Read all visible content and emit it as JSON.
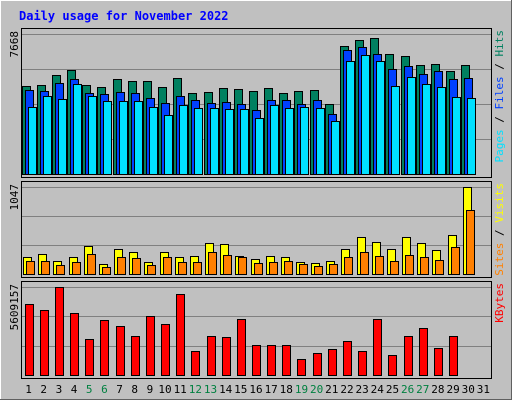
{
  "chart_data": {
    "type": "bar",
    "title": "Daily usage for November 2022",
    "days": [
      1,
      2,
      3,
      4,
      5,
      6,
      7,
      8,
      9,
      10,
      11,
      12,
      13,
      14,
      15,
      16,
      17,
      18,
      19,
      20,
      21,
      22,
      23,
      24,
      25,
      26,
      27,
      28,
      29,
      30,
      31
    ],
    "weekend_days": [
      5,
      6,
      12,
      13,
      19,
      20,
      26,
      27
    ],
    "colors": {
      "hits": "#008060",
      "files": "#0040ff",
      "pages": "#00e0ff",
      "visits": "#ffff00",
      "sites": "#ff8000",
      "kbytes": "#ff0000",
      "weekend_label": "#008040",
      "weekday_label": "#000000",
      "title": "#0000ff"
    },
    "panels": [
      {
        "id": "requests",
        "max_label": "7668",
        "max_value": 7668,
        "axis_legend": [
          {
            "text": "Pages",
            "color": "#00e0ff"
          },
          {
            "text": " / ",
            "color": "#000000"
          },
          {
            "text": "Files",
            "color": "#0040ff"
          },
          {
            "text": " / ",
            "color": "#000000"
          },
          {
            "text": "Hits",
            "color": "#008060"
          }
        ],
        "series": [
          {
            "name": "Hits",
            "color": "#008060",
            "values": [
              4830,
              4860,
              5420,
              5720,
              4900,
              4760,
              5190,
              5100,
              5080,
              4760,
              5240,
              4420,
              4470,
              4700,
              4640,
              4540,
              4690,
              4420,
              4540,
              4590,
              3840,
              7020,
              7350,
              7440,
              6570,
              6450,
              5960,
              6030,
              5650,
              5980,
              0
            ]
          },
          {
            "name": "Files",
            "color": "#0040ff",
            "values": [
              4600,
              4530,
              5010,
              5190,
              4450,
              4360,
              4470,
              4440,
              4140,
              3880,
              4260,
              4070,
              3890,
              3940,
              3850,
              3530,
              4050,
              4030,
              3810,
              4050,
              3270,
              6800,
              6940,
              6570,
              5730,
              5940,
              5480,
              5660,
              5200,
              5270,
              0
            ]
          },
          {
            "name": "Pages",
            "color": "#00e0ff",
            "values": [
              3660,
              4250,
              4110,
              4940,
              4270,
              4000,
              4000,
              4000,
              3650,
              3220,
              3800,
              3640,
              3600,
              3560,
              3570,
              3050,
              3780,
              3610,
              3680,
              3640,
              2880,
              6200,
              6530,
              6170,
              4830,
              5330,
              4920,
              4770,
              4210,
              4190,
              0
            ]
          }
        ]
      },
      {
        "id": "visitors",
        "max_label": "1047",
        "max_value": 1047,
        "axis_legend": [
          {
            "text": "Sites",
            "color": "#ff8000"
          },
          {
            "text": " / ",
            "color": "#000000"
          },
          {
            "text": "Visits",
            "color": "#ffff00"
          }
        ],
        "series": [
          {
            "name": "Visits",
            "color": "#ffff00",
            "values": [
              200,
              240,
              160,
              200,
              340,
              120,
              300,
              260,
              140,
              270,
              200,
              220,
              370,
              360,
              220,
              180,
              220,
              200,
              150,
              130,
              160,
              300,
              450,
              380,
              300,
              440,
              370,
              290,
              470,
              1047,
              0
            ]
          },
          {
            "name": "Sites",
            "color": "#ff8000",
            "values": [
              160,
              160,
              110,
              140,
              240,
              90,
              210,
              190,
              110,
              200,
              150,
              150,
              260,
              230,
              210,
              130,
              140,
              160,
              120,
              100,
              120,
              210,
              260,
              220,
              160,
              230,
              200,
              170,
              320,
              770,
              0
            ]
          }
        ]
      },
      {
        "id": "kbytes",
        "max_label": "5609157",
        "max_value": 5609157,
        "axis_legend": [
          {
            "text": "KBytes",
            "color": "#ff0000"
          }
        ],
        "series": [
          {
            "name": "KBytes",
            "color": "#ff0000",
            "values": [
              4530000,
              4130000,
              5590000,
              3940000,
              2290000,
              3480000,
              3130000,
              2470000,
              3730000,
              3250000,
              5160000,
              1520000,
              2470000,
              2410000,
              3590000,
              1940000,
              1940000,
              1940000,
              1050000,
              1430000,
              1680000,
              2150000,
              1560000,
              3590000,
              1270000,
              2470000,
              2970000,
              1740000,
              2470000,
              0,
              0
            ]
          }
        ]
      }
    ]
  }
}
